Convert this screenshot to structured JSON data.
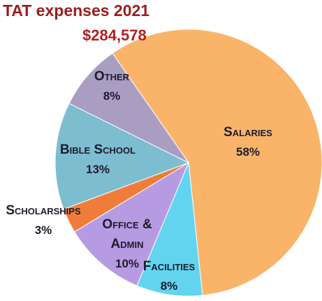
{
  "chart_data": {
    "type": "pie",
    "title": "TAT expenses 2021",
    "subtitle": "$284,578",
    "categories": [
      "Salaries",
      "Facilities",
      "Office & Admin",
      "Scholarships",
      "Bible School",
      "Other"
    ],
    "values": [
      58,
      8,
      10,
      3,
      13,
      8
    ],
    "value_labels": [
      "58%",
      "8%",
      "10%",
      "3%",
      "13%",
      "8%"
    ],
    "colors": [
      "#f9b46a",
      "#62d4f0",
      "#b79be2",
      "#f07c3a",
      "#7dbdd0",
      "#a99ec2"
    ]
  }
}
